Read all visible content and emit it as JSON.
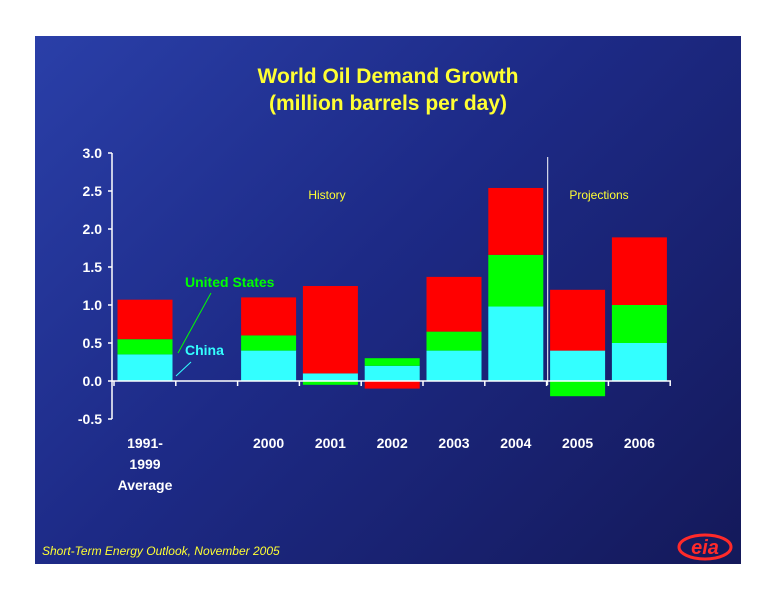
{
  "slide": {
    "title_line1": "World Oil Demand Growth",
    "title_line2": "(million barrels per day)",
    "footer": "Short-Term Energy Outlook, November 2005",
    "logo_text": "eia"
  },
  "colors": {
    "background": "#1f2a8a",
    "china": "#33ffff",
    "united_states": "#00ff00",
    "rest_of_world": "#ff0000",
    "title_text": "#ffff33",
    "axis_text": "#ffffff"
  },
  "chart_data": {
    "type": "bar",
    "stacked": true,
    "ylim": [
      -0.5,
      3.0
    ],
    "yticks": [
      "3.0",
      "2.5",
      "2.0",
      "1.5",
      "1.0",
      "0.5",
      "0.0",
      "-0.5"
    ],
    "ytick_values": [
      3.0,
      2.5,
      2.0,
      1.5,
      1.0,
      0.5,
      0.0,
      -0.5
    ],
    "grid": false,
    "categories": [
      [
        "1991-",
        "1999",
        "Average"
      ],
      [
        ""
      ],
      [
        "2000"
      ],
      [
        "2001"
      ],
      [
        "2002"
      ],
      [
        "2003"
      ],
      [
        "2004"
      ],
      [
        "2005"
      ],
      [
        "2006"
      ]
    ],
    "series": [
      {
        "key": "china",
        "values": [
          0.35,
          null,
          0.4,
          0.1,
          0.2,
          0.4,
          0.98,
          0.4,
          0.5
        ]
      },
      {
        "key": "united_states",
        "values": [
          0.2,
          null,
          0.2,
          -0.05,
          0.1,
          0.25,
          0.68,
          -0.2,
          0.5
        ]
      },
      {
        "key": "rest_of_world",
        "values": [
          0.52,
          null,
          0.5,
          1.15,
          -0.1,
          0.72,
          0.88,
          0.8,
          0.89
        ]
      }
    ],
    "annotations": {
      "united_states_label": "United States",
      "china_label": "China",
      "history_label": "History",
      "projections_label": "Projections"
    }
  }
}
